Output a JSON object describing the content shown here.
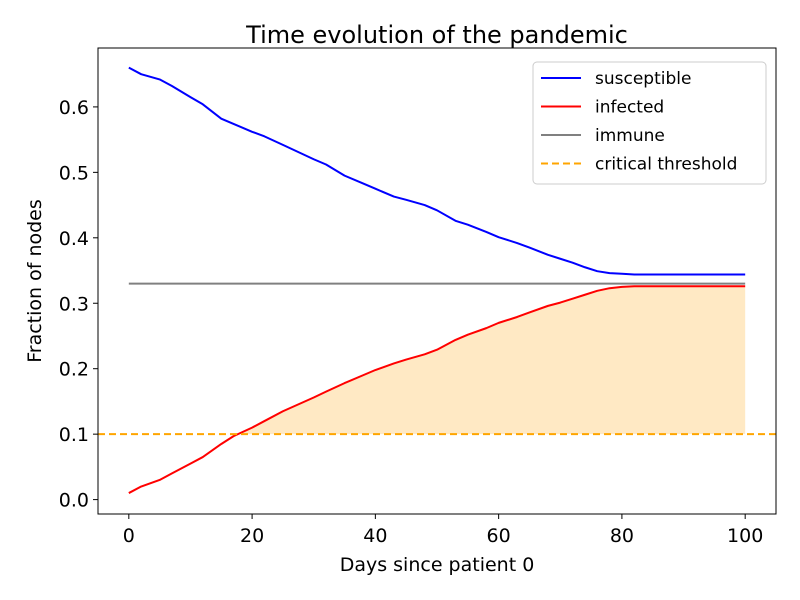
{
  "chart_data": {
    "type": "line",
    "title": "Time evolution of the pandemic",
    "xlabel": "Days since patient 0",
    "ylabel": "Fraction of nodes",
    "xlim": [
      -5,
      105
    ],
    "ylim": [
      -0.022,
      0.69
    ],
    "xticks": [
      0,
      20,
      40,
      60,
      80,
      100
    ],
    "yticks": [
      0.0,
      0.1,
      0.2,
      0.3,
      0.4,
      0.5,
      0.6
    ],
    "grid": false,
    "legend_position": "top-right",
    "x": [
      0,
      2,
      5,
      7,
      10,
      12,
      15,
      17,
      20,
      22,
      25,
      30,
      32,
      35,
      38,
      40,
      43,
      45,
      48,
      50,
      53,
      55,
      58,
      60,
      63,
      65,
      68,
      70,
      72,
      74,
      76,
      78,
      80,
      82,
      85,
      90,
      95,
      100
    ],
    "series": [
      {
        "name": "susceptible",
        "color": "#0000ff",
        "style": "solid",
        "values": [
          0.66,
          0.65,
          0.642,
          0.632,
          0.615,
          0.604,
          0.582,
          0.574,
          0.562,
          0.555,
          0.542,
          0.52,
          0.512,
          0.495,
          0.483,
          0.475,
          0.463,
          0.458,
          0.45,
          0.442,
          0.426,
          0.42,
          0.409,
          0.401,
          0.392,
          0.385,
          0.374,
          0.368,
          0.362,
          0.355,
          0.349,
          0.346,
          0.345,
          0.344,
          0.344,
          0.344,
          0.344,
          0.344
        ]
      },
      {
        "name": "infected",
        "color": "#ff0000",
        "style": "solid",
        "values": [
          0.01,
          0.02,
          0.03,
          0.04,
          0.055,
          0.065,
          0.085,
          0.097,
          0.11,
          0.12,
          0.135,
          0.156,
          0.165,
          0.178,
          0.19,
          0.198,
          0.208,
          0.214,
          0.222,
          0.229,
          0.244,
          0.252,
          0.262,
          0.27,
          0.279,
          0.286,
          0.296,
          0.301,
          0.307,
          0.313,
          0.319,
          0.323,
          0.325,
          0.326,
          0.326,
          0.326,
          0.326,
          0.326
        ]
      },
      {
        "name": "immune",
        "color": "#808080",
        "style": "solid",
        "values": [
          0.33,
          0.33,
          0.33,
          0.33,
          0.33,
          0.33,
          0.33,
          0.33,
          0.33,
          0.33,
          0.33,
          0.33,
          0.33,
          0.33,
          0.33,
          0.33,
          0.33,
          0.33,
          0.33,
          0.33,
          0.33,
          0.33,
          0.33,
          0.33,
          0.33,
          0.33,
          0.33,
          0.33,
          0.33,
          0.33,
          0.33,
          0.33,
          0.33,
          0.33,
          0.33,
          0.33,
          0.33,
          0.33
        ]
      }
    ],
    "critical_threshold": {
      "name": "critical threshold",
      "value": 0.1,
      "color": "#ffa500",
      "style": "dashed"
    },
    "fill": {
      "between": [
        "infected",
        "critical threshold"
      ],
      "where": "infected above threshold",
      "color": "#ffe9c4"
    }
  }
}
